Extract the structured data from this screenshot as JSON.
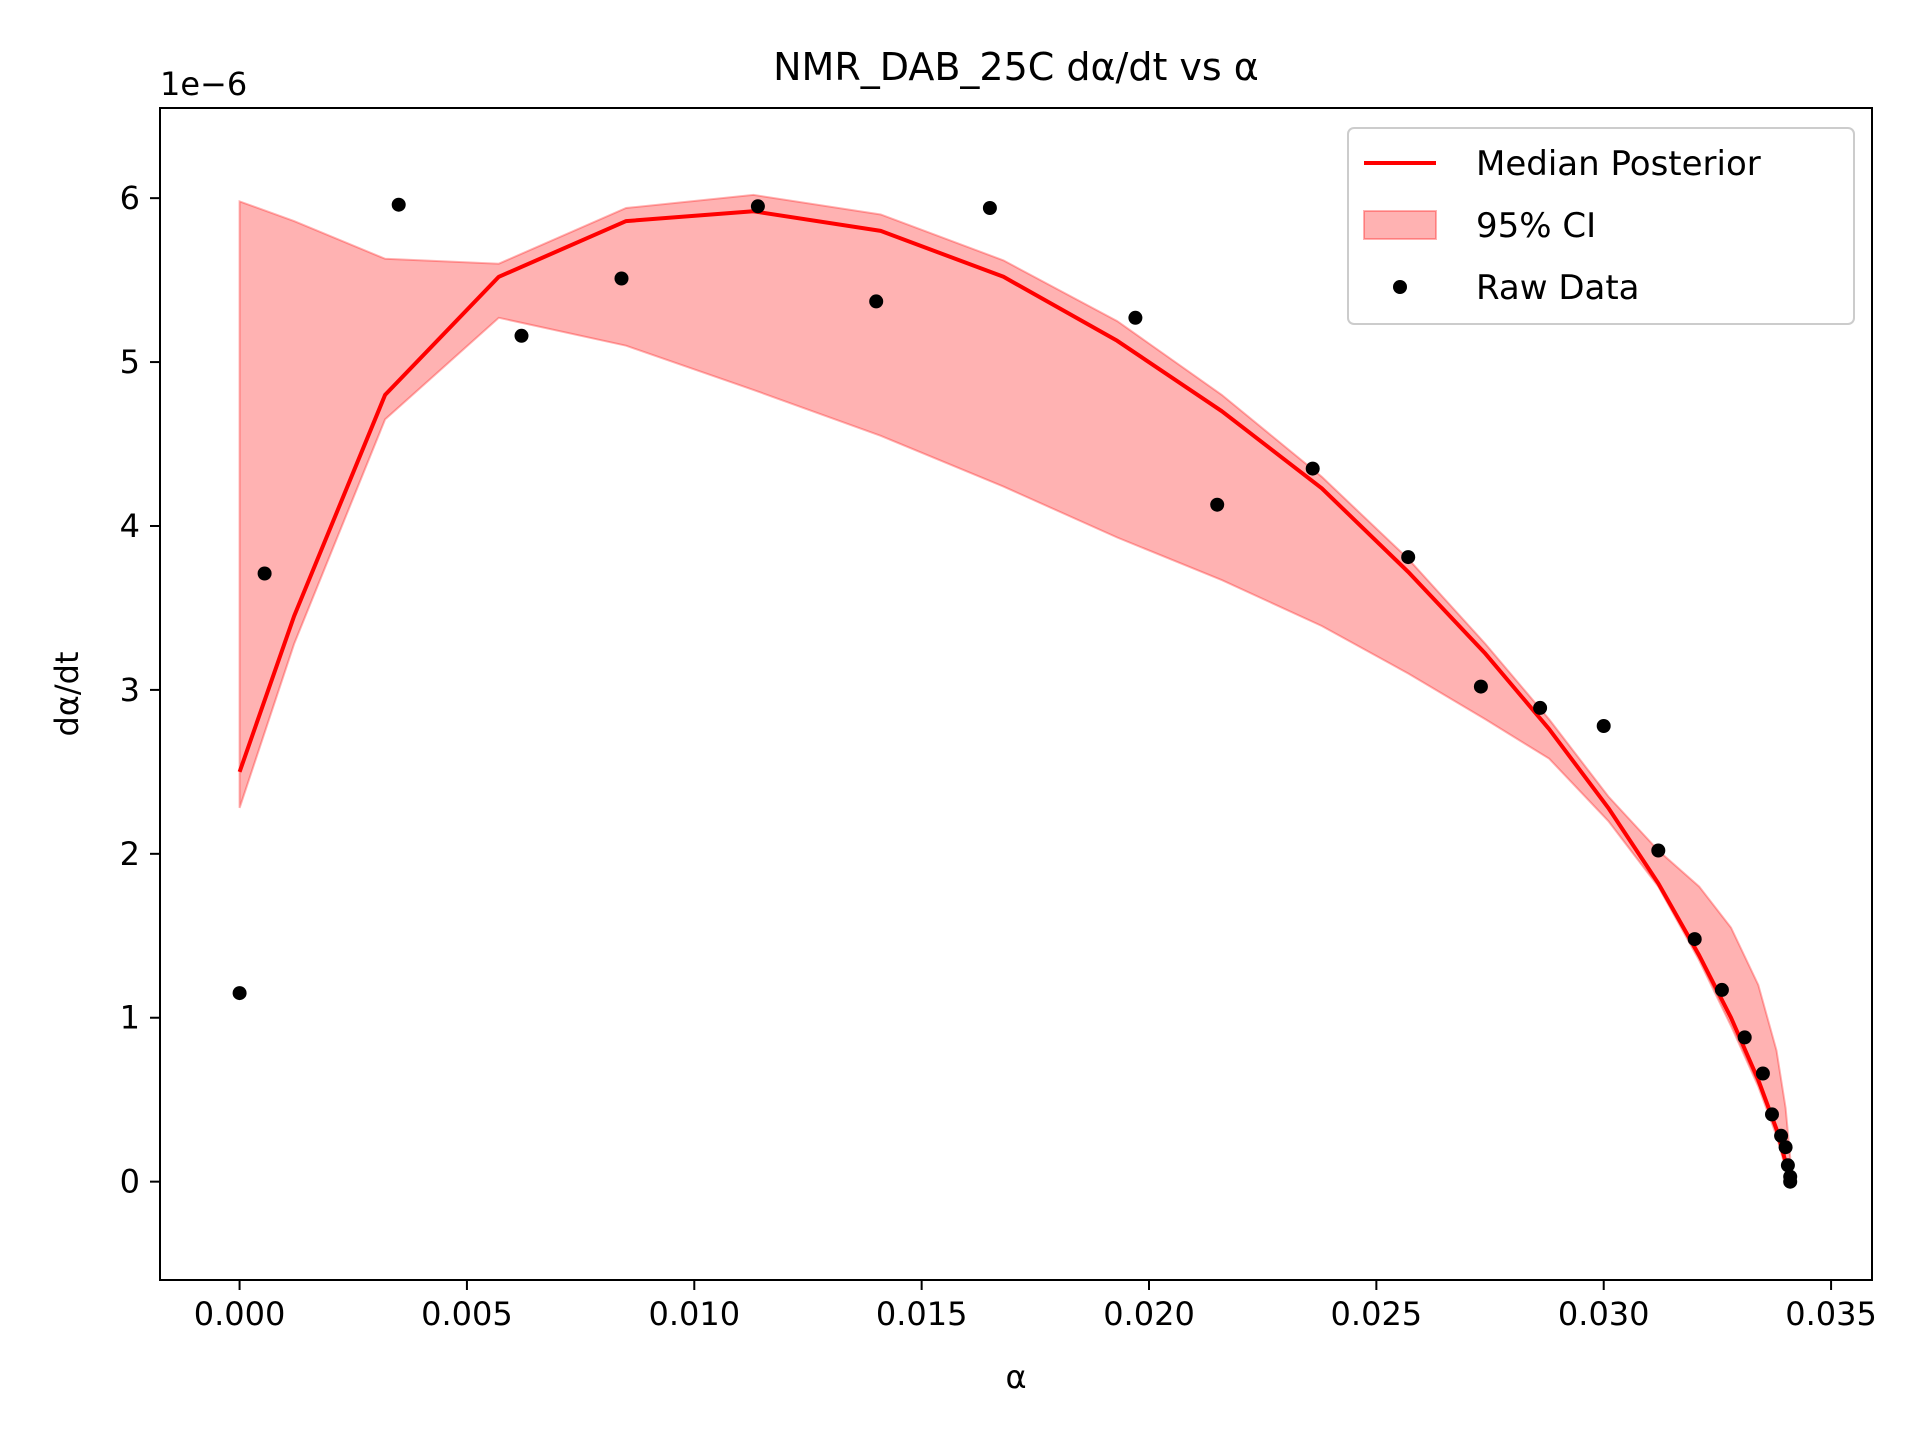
{
  "chart_data": {
    "type": "line",
    "title": "NMR_DAB_25C dα/dt vs α",
    "xlabel": "α",
    "ylabel": "dα/dt",
    "y_offset_label": "1e−6",
    "xlim": [
      -0.00175,
      0.0359
    ],
    "ylim": [
      -0.6,
      6.55
    ],
    "y_scale_factor": 1e-06,
    "grid": false,
    "legend_placement": "top-right",
    "x_ticks": [
      0.0,
      0.005,
      0.01,
      0.015,
      0.02,
      0.025,
      0.03,
      0.035
    ],
    "x_tick_labels": [
      "0.000",
      "0.005",
      "0.010",
      "0.015",
      "0.020",
      "0.025",
      "0.030",
      "0.035"
    ],
    "y_ticks": [
      0,
      1,
      2,
      3,
      4,
      5,
      6
    ],
    "y_tick_labels": [
      "0",
      "1",
      "2",
      "3",
      "4",
      "5",
      "6"
    ],
    "legend": [
      {
        "label": "Median Posterior",
        "kind": "line"
      },
      {
        "label": "95% CI",
        "kind": "band"
      },
      {
        "label": "Raw Data",
        "kind": "marker"
      }
    ],
    "series": [
      {
        "name": "Median Posterior",
        "kind": "line",
        "color": "#ff0000",
        "x": [
          0.0,
          0.0012,
          0.0032,
          0.0057,
          0.0085,
          0.0113,
          0.0141,
          0.0168,
          0.0193,
          0.0216,
          0.0238,
          0.0257,
          0.0274,
          0.0288,
          0.0301,
          0.0312,
          0.0321,
          0.0328,
          0.0334,
          0.0338,
          0.034,
          0.0341
        ],
        "y": [
          2.5,
          3.45,
          4.8,
          5.52,
          5.86,
          5.92,
          5.8,
          5.52,
          5.13,
          4.7,
          4.23,
          3.72,
          3.22,
          2.76,
          2.28,
          1.82,
          1.38,
          1.0,
          0.62,
          0.32,
          0.12,
          0.02
        ]
      },
      {
        "name": "95% CI",
        "kind": "band",
        "color": "#ff0000",
        "opacity": 0.3,
        "x": [
          0.0,
          0.0012,
          0.0032,
          0.0057,
          0.0085,
          0.0113,
          0.0141,
          0.0168,
          0.0193,
          0.0216,
          0.0238,
          0.0257,
          0.0274,
          0.0288,
          0.0301,
          0.0312,
          0.0321,
          0.0328,
          0.0334,
          0.0338,
          0.034,
          0.0341
        ],
        "upper": [
          5.98,
          5.86,
          5.63,
          5.6,
          5.94,
          6.02,
          5.9,
          5.62,
          5.25,
          4.8,
          4.3,
          3.8,
          3.28,
          2.82,
          2.35,
          2.02,
          1.8,
          1.55,
          1.2,
          0.8,
          0.45,
          0.15
        ],
        "lower": [
          2.28,
          3.28,
          4.65,
          5.27,
          5.1,
          4.83,
          4.55,
          4.24,
          3.93,
          3.67,
          3.39,
          3.1,
          2.82,
          2.58,
          2.2,
          1.8,
          1.35,
          0.95,
          0.58,
          0.28,
          0.08,
          0.0
        ]
      },
      {
        "name": "Raw Data",
        "kind": "scatter",
        "color": "#000000",
        "x": [
          0.0,
          0.00055,
          0.0035,
          0.0062,
          0.0084,
          0.0114,
          0.014,
          0.0165,
          0.0197,
          0.0215,
          0.0236,
          0.0257,
          0.0273,
          0.0286,
          0.03,
          0.0312,
          0.032,
          0.0326,
          0.0331,
          0.0335,
          0.0337,
          0.0339,
          0.034,
          0.03405,
          0.0341,
          0.0341
        ],
        "y": [
          1.15,
          3.71,
          5.96,
          5.16,
          5.51,
          5.95,
          5.37,
          5.94,
          5.27,
          4.13,
          4.35,
          3.81,
          3.02,
          2.89,
          2.78,
          2.02,
          1.48,
          1.17,
          0.88,
          0.66,
          0.41,
          0.28,
          0.21,
          0.1,
          0.03,
          0.0
        ]
      }
    ]
  }
}
